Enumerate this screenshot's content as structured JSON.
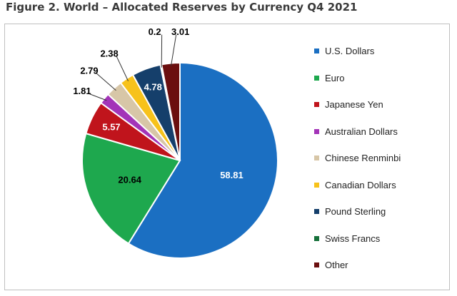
{
  "figure_title": "Figure 2. World – Allocated Reserves by Currency Q4 2021",
  "chart_data": {
    "type": "pie",
    "title": "",
    "labels": [
      "U.S. Dollars",
      "Euro",
      "Japanese Yen",
      "Australian Dollars",
      "Chinese Renminbi",
      "Canadian Dollars",
      "Pound Sterling",
      "Swiss Francs",
      "Other"
    ],
    "values": [
      58.81,
      20.64,
      5.57,
      1.81,
      2.79,
      2.38,
      4.78,
      0.2,
      3.01
    ],
    "value_labels": [
      "58.81",
      "20.64",
      "5.57",
      "1.81",
      "2.79",
      "2.38",
      "4.78",
      "0.2",
      "3.01"
    ],
    "colors": [
      "#1b6fc2",
      "#1ea84e",
      "#c0141c",
      "#a334b8",
      "#d7c6a7",
      "#f7c21b",
      "#153f6b",
      "#16703a",
      "#6b0f0f"
    ],
    "label_colors": [
      "#ffffff",
      "#000000",
      "#ffffff",
      "#000000",
      "#000000",
      "#000000",
      "#ffffff",
      "#000000",
      "#000000"
    ],
    "legend_position": "right"
  }
}
